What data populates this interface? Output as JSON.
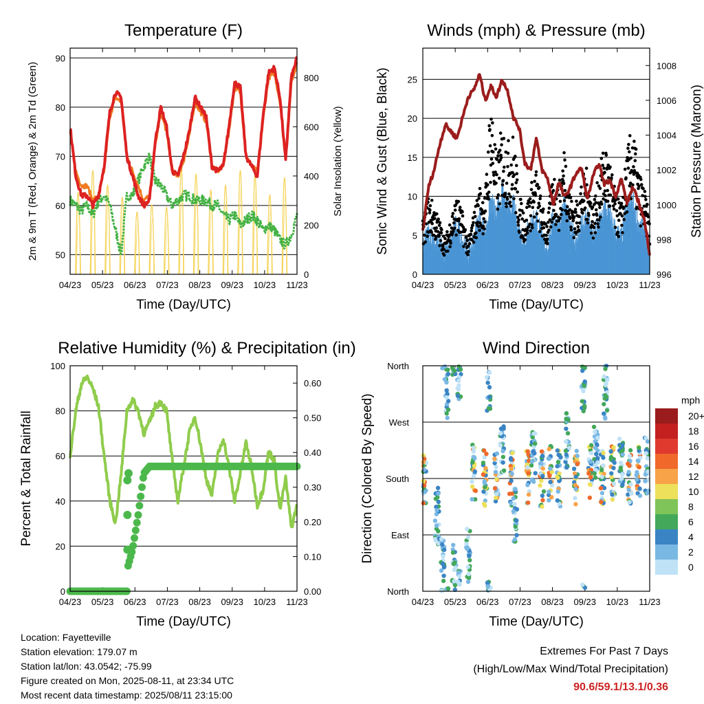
{
  "chart_data": [
    {
      "type": "line",
      "title": "Temperature (F)",
      "xlabel": "Time (Day/UTC)",
      "ylabel": "2m & 9m T (Red, Orange) & 2m Td (Green)",
      "ylabel_right": "Solar Insolation (Yellow)",
      "x_ticks": [
        "04/23",
        "05/23",
        "06/23",
        "07/23",
        "08/23",
        "09/23",
        "10/23",
        "11/23"
      ],
      "ylim": [
        46,
        92
      ],
      "y_ticks": [
        50,
        60,
        70,
        80,
        90
      ],
      "ylim_right": [
        0,
        920
      ],
      "y_ticks_right": [
        0,
        200,
        400,
        600,
        800
      ],
      "grid": true,
      "series": [
        {
          "name": "2m T",
          "color": "#dd2222",
          "x": [
            0,
            1,
            2,
            3,
            4,
            5,
            6,
            7,
            8,
            9,
            10,
            11,
            12,
            13,
            14,
            15,
            16,
            17,
            18,
            19,
            20,
            21,
            22,
            23,
            24,
            25,
            26,
            27,
            28,
            29,
            30,
            31,
            32,
            33,
            34,
            35,
            36,
            37,
            38,
            39,
            40
          ],
          "values": [
            76,
            66,
            62,
            62,
            60,
            62,
            68,
            79,
            83,
            82,
            70,
            66,
            62,
            60,
            61,
            73,
            80,
            76,
            67,
            66,
            70,
            75,
            82,
            80,
            78,
            68,
            67,
            68,
            76,
            85,
            84,
            70,
            68,
            66,
            78,
            87,
            88,
            82,
            69,
            86,
            90
          ]
        },
        {
          "name": "9m T",
          "color": "#f07a20",
          "x": [
            0,
            1,
            2,
            3,
            4,
            5,
            6,
            7,
            8,
            9,
            10,
            11,
            12,
            13,
            14,
            15,
            16,
            17,
            18,
            19,
            20,
            21,
            22,
            23,
            24,
            25,
            26,
            27,
            28,
            29,
            30,
            31,
            32,
            33,
            34,
            35,
            36,
            37,
            38,
            39,
            40
          ],
          "values": [
            75,
            67,
            64,
            64,
            61,
            62,
            67,
            78,
            82,
            81,
            70,
            67,
            64,
            61,
            62,
            72,
            79,
            75,
            67,
            66,
            69,
            74,
            81,
            79,
            77,
            68,
            67,
            68,
            75,
            84,
            83,
            70,
            68,
            67,
            77,
            86,
            87,
            81,
            70,
            85,
            89
          ]
        },
        {
          "name": "2m Td",
          "color": "#44b244",
          "x": [
            0,
            1,
            2,
            3,
            4,
            5,
            6,
            7,
            8,
            9,
            10,
            11,
            12,
            13,
            14,
            15,
            16,
            17,
            18,
            19,
            20,
            21,
            22,
            23,
            24,
            25,
            26,
            27,
            28,
            29,
            30,
            31,
            32,
            33,
            34,
            35,
            36,
            37,
            38,
            39,
            40
          ],
          "values": [
            61,
            60,
            59,
            60,
            58,
            61,
            62,
            60,
            55,
            50,
            62,
            62,
            65,
            68,
            70,
            65,
            64,
            62,
            60,
            61,
            62,
            62,
            61,
            61,
            61,
            60,
            60,
            58,
            57,
            58,
            56,
            57,
            58,
            57,
            55,
            56,
            55,
            53,
            52,
            54,
            58
          ]
        },
        {
          "name": "Solar Insolation",
          "color": "#f5d45a",
          "axis": "right",
          "peaks": [
            640,
            820,
            700,
            600,
            480,
            540,
            520,
            830,
            790,
            660,
            700,
            820,
            780,
            620,
            760
          ]
        }
      ]
    },
    {
      "type": "scatter",
      "title": "Winds (mph) & Pressure (mb)",
      "xlabel": "Time (Day/UTC)",
      "ylabel": "Sonic Wind & Gust (Blue, Black)",
      "ylabel_right": "Station Pressure (Maroon)",
      "x_ticks": [
        "04/23",
        "05/23",
        "06/23",
        "07/23",
        "08/23",
        "09/23",
        "10/23",
        "11/23"
      ],
      "ylim": [
        0,
        29
      ],
      "y_ticks": [
        0,
        5,
        10,
        15,
        20,
        25
      ],
      "ylim_right": [
        996,
        1009
      ],
      "y_ticks_right": [
        996,
        998,
        1000,
        1002,
        1004,
        1006,
        1008
      ],
      "grid": true,
      "series": [
        {
          "name": "Station Pressure",
          "color": "#9b1c1c",
          "x": [
            0,
            1,
            2,
            3,
            4,
            5,
            6,
            7,
            8,
            9,
            10,
            11,
            12,
            13,
            14,
            15,
            16,
            17,
            18,
            19,
            20,
            21,
            22,
            23,
            24,
            25,
            26,
            27,
            28,
            29,
            30,
            31,
            32,
            33,
            34,
            35,
            36,
            37,
            38,
            39,
            40
          ],
          "values": [
            998.5,
            1001,
            1002,
            1003.5,
            1004.6,
            1004.2,
            1003.8,
            1005,
            1006.2,
            1006.6,
            1007.5,
            1006,
            1006.8,
            1006.2,
            1007.2,
            1006.5,
            1005,
            1004.4,
            1002.4,
            1002,
            1003.8,
            1002,
            1001.5,
            1000,
            1001.3,
            1000.4,
            1001,
            1001.8,
            1002.1,
            1000.3,
            1001.6,
            1002.4,
            1001.2,
            1001.4,
            1000.5,
            1001.5,
            1000.1,
            1001,
            1000.2,
            999.2,
            997.2
          ]
        },
        {
          "name": "Sonic Wind",
          "color": "#4a95d4",
          "x": [
            0,
            1,
            2,
            3,
            4,
            5,
            6,
            7,
            8,
            9,
            10,
            11,
            12,
            13,
            14,
            15,
            16,
            17,
            18,
            19,
            20,
            21,
            22,
            23,
            24,
            25,
            26,
            27,
            28,
            29,
            30,
            31,
            32,
            33,
            34,
            35,
            36,
            37,
            38,
            39,
            40
          ],
          "values": [
            3,
            5,
            4,
            3,
            2,
            4,
            6,
            4,
            2,
            4,
            7,
            5,
            9,
            7,
            10,
            8,
            9,
            5,
            4,
            6,
            7,
            4,
            3,
            7,
            6,
            9,
            5,
            4,
            6,
            7,
            4,
            6,
            8,
            7,
            5,
            4,
            8,
            9,
            6,
            5,
            3
          ]
        },
        {
          "name": "Gust",
          "color": "#000000",
          "x": [
            0,
            1,
            2,
            3,
            4,
            5,
            6,
            7,
            8,
            9,
            10,
            11,
            12,
            13,
            14,
            15,
            16,
            17,
            18,
            19,
            20,
            21,
            22,
            23,
            24,
            25,
            26,
            27,
            28,
            29,
            30,
            31,
            32,
            33,
            34,
            35,
            36,
            37,
            38,
            39,
            40
          ],
          "values": [
            6,
            9,
            8,
            6,
            4,
            7,
            9,
            7,
            4,
            7,
            10,
            9,
            21,
            13,
            17,
            15,
            16,
            9,
            7,
            10,
            12,
            8,
            6,
            12,
            10,
            15,
            9,
            8,
            11,
            12,
            8,
            11,
            15,
            13,
            9,
            8,
            14,
            17,
            12,
            10,
            6
          ]
        }
      ]
    },
    {
      "type": "line",
      "title": "Relative Humidity (%) & Precipitation (in)",
      "xlabel": "Time (Day/UTC)",
      "ylabel": "Percent & Total Rainfall",
      "x_ticks": [
        "04/23",
        "05/23",
        "06/23",
        "07/23",
        "08/23",
        "09/23",
        "10/23",
        "11/23"
      ],
      "ylim": [
        0,
        100
      ],
      "y_ticks": [
        0,
        20,
        40,
        60,
        80,
        100
      ],
      "ylim_right": [
        0,
        0.65
      ],
      "y_ticks_right": [
        "0.00",
        "0.10",
        "0.20",
        "0.30",
        "0.40",
        "0.50",
        "0.60"
      ],
      "grid": true,
      "series": [
        {
          "name": "Relative Humidity",
          "color": "#8fcc4c",
          "x": [
            0,
            1,
            2,
            3,
            4,
            5,
            6,
            7,
            8,
            9,
            10,
            11,
            12,
            13,
            14,
            15,
            16,
            17,
            18,
            19,
            20,
            21,
            22,
            23,
            24,
            25,
            26,
            27,
            28,
            29,
            30,
            31,
            32,
            33,
            34,
            35,
            36,
            37,
            38,
            39,
            40
          ],
          "values": [
            60,
            80,
            92,
            95,
            90,
            82,
            60,
            40,
            30,
            52,
            80,
            85,
            80,
            70,
            75,
            82,
            84,
            80,
            58,
            40,
            55,
            70,
            78,
            65,
            50,
            42,
            60,
            68,
            55,
            40,
            52,
            66,
            55,
            38,
            45,
            62,
            58,
            36,
            50,
            28,
            38
          ]
        },
        {
          "name": "Total Precipitation",
          "color": "#4cb84c",
          "axis": "right",
          "x": [
            0,
            3,
            6,
            9,
            11,
            12,
            13,
            14,
            15,
            16,
            20,
            25,
            30,
            35,
            40
          ],
          "values": [
            0,
            0,
            0,
            0,
            0.12,
            0.22,
            0.34,
            0.36,
            0.36,
            0.36,
            0.36,
            0.36,
            0.36,
            0.36,
            0.36
          ]
        }
      ]
    },
    {
      "type": "scatter",
      "title": "Wind Direction",
      "xlabel": "Time (Day/UTC)",
      "ylabel": "Direction (Colored By Speed)",
      "x_ticks": [
        "04/23",
        "05/23",
        "06/23",
        "07/23",
        "08/23",
        "09/23",
        "10/23",
        "11/23"
      ],
      "y_ticks": [
        "North",
        "East",
        "South",
        "West",
        "North"
      ],
      "ylim": [
        0,
        360
      ],
      "grid": true,
      "colorbar": {
        "title": "mph",
        "labels": [
          "20+",
          "18",
          "16",
          "14",
          "12",
          "10",
          "8",
          "6",
          "4",
          "2",
          "0"
        ],
        "colors": [
          "#9b1c1c",
          "#c42020",
          "#e03a2e",
          "#f0692a",
          "#f8a348",
          "#ede05a",
          "#7fc458",
          "#43a85a",
          "#3a84c4",
          "#7ab8e4",
          "#bfe2f6"
        ]
      },
      "clusters": [
        {
          "x": 0.3,
          "dir": 185
        },
        {
          "x": 2.5,
          "dir": 120
        },
        {
          "x": 3.5,
          "dir": 40
        },
        {
          "x": 4.2,
          "dir": 320
        },
        {
          "x": 5.5,
          "dir": 30
        },
        {
          "x": 6.4,
          "dir": 350
        },
        {
          "x": 8.0,
          "dir": 60
        },
        {
          "x": 9.0,
          "dir": 190
        },
        {
          "x": 11.0,
          "dir": 180
        },
        {
          "x": 11.6,
          "dir": 330
        },
        {
          "x": 13.0,
          "dir": 180
        },
        {
          "x": 14.0,
          "dir": 220
        },
        {
          "x": 15.6,
          "dir": 180
        },
        {
          "x": 16.3,
          "dir": 120
        },
        {
          "x": 18.5,
          "dir": 180
        },
        {
          "x": 19.5,
          "dir": 210
        },
        {
          "x": 21.0,
          "dir": 180
        },
        {
          "x": 22.5,
          "dir": 190
        },
        {
          "x": 24.0,
          "dir": 180
        },
        {
          "x": 25.5,
          "dir": 240
        },
        {
          "x": 27.0,
          "dir": 180
        },
        {
          "x": 28.3,
          "dir": 330
        },
        {
          "x": 29.5,
          "dir": 190
        },
        {
          "x": 30.5,
          "dir": 220
        },
        {
          "x": 31.7,
          "dir": 180
        },
        {
          "x": 32.2,
          "dir": 320
        },
        {
          "x": 33.5,
          "dir": 190
        },
        {
          "x": 35.0,
          "dir": 210
        },
        {
          "x": 36.5,
          "dir": 180
        },
        {
          "x": 38.0,
          "dir": 190
        },
        {
          "x": 39.5,
          "dir": 200
        }
      ]
    }
  ],
  "info": {
    "location": "Location: Fayetteville",
    "elevation": "Station elevation: 179.07 m",
    "latlon": "Station lat/lon: 43.0542; -75.99",
    "created": "Figure created on Mon, 2025-08-11, at 23:34 UTC",
    "recent": "Most recent data timestamp: 2025/08/11 23:15:00"
  },
  "extremes": {
    "line1": "Extremes For Past 7 Days",
    "line2": "(High/Low/Max Wind/Total Precipitation)",
    "values": "90.6/59.1/13.1/0.36"
  }
}
